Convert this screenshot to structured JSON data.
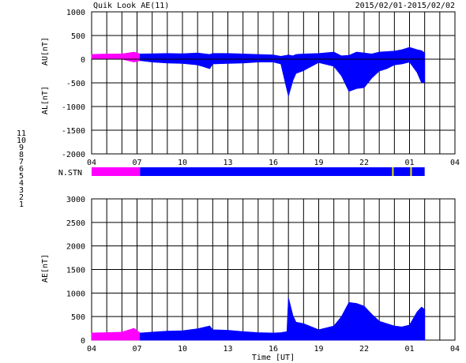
{
  "header": {
    "title": "Quik Look AE(11)",
    "date_range": "2015/02/01-2015/02/02"
  },
  "station_legend": [
    {
      "label": "11",
      "color": "#00e0e0"
    },
    {
      "label": "10",
      "color": "#ff00ff"
    },
    {
      "label": "9",
      "color": "#0000ff"
    },
    {
      "label": "8",
      "color": "#e8e800"
    },
    {
      "label": "7",
      "color": "#00d0a0"
    },
    {
      "label": "6",
      "color": "#e00000"
    },
    {
      "label": "5",
      "color": "#c8c8c8"
    },
    {
      "label": "4",
      "color": "#909090"
    },
    {
      "label": "3",
      "color": "#00c0c0"
    },
    {
      "label": "2",
      "color": "#c000c0"
    },
    {
      "label": "1",
      "color": "#0000c0"
    }
  ],
  "colors": {
    "early_segment": "#ff00ff",
    "main_segment": "#0000ff",
    "gap_marker": "#e8e800"
  },
  "chart_data": [
    {
      "type": "area",
      "ylabel_upper": "AU[nT]",
      "ylabel_lower": "AL[nT]",
      "ylim": [
        -2000,
        1000
      ],
      "yticks": [
        1000,
        500,
        0,
        -500,
        -1000,
        -1500,
        -2000
      ],
      "xlim": [
        4,
        28
      ],
      "xtick_labels": [
        "04",
        "07",
        "10",
        "13",
        "16",
        "19",
        "22",
        "01",
        "04"
      ],
      "grid": true,
      "x": [
        4,
        5,
        6,
        6.8,
        7.2,
        8,
        9,
        10,
        11,
        11.8,
        12,
        13,
        14,
        15,
        16,
        16.5,
        17,
        17.3,
        17.5,
        18,
        19,
        20,
        20.5,
        21,
        21.5,
        22,
        22.5,
        23,
        23.5,
        24,
        24.5,
        25,
        25.5,
        25.8,
        26
      ],
      "series": [
        {
          "values": [
            100,
            110,
            110,
            150,
            110,
            115,
            120,
            115,
            130,
            100,
            120,
            120,
            110,
            100,
            90,
            60,
            90,
            70,
            100,
            110,
            120,
            150,
            70,
            80,
            150,
            130,
            110,
            150,
            160,
            170,
            200,
            250,
            200,
            180,
            130
          ]
        },
        {
          "values": [
            10,
            10,
            0,
            -60,
            -30,
            -60,
            -80,
            -90,
            -120,
            -200,
            -100,
            -90,
            -80,
            -60,
            -60,
            -100,
            -780,
            -450,
            -300,
            -240,
            -70,
            -150,
            -350,
            -680,
            -620,
            -600,
            -400,
            -250,
            -200,
            -120,
            -100,
            -60,
            -280,
            -500,
            -480
          ]
        }
      ]
    },
    {
      "type": "area",
      "ylabel": "AE[nT]",
      "ylim": [
        0,
        3000
      ],
      "yticks": [
        3000,
        2500,
        2000,
        1500,
        1000,
        500,
        0
      ],
      "xlim": [
        4,
        28
      ],
      "xtick_labels": [
        "04",
        "07",
        "10",
        "13",
        "16",
        "19",
        "22",
        "01",
        "04"
      ],
      "xlabel": "Time [UT]",
      "grid": true,
      "x": [
        4,
        5,
        6,
        6.8,
        7.2,
        8,
        9,
        10,
        11,
        11.8,
        12,
        13,
        14,
        15,
        16,
        16.5,
        16.9,
        17,
        17.3,
        17.5,
        18,
        19,
        20,
        20.5,
        21,
        21.5,
        22,
        22.5,
        23,
        23.5,
        24,
        24.5,
        25,
        25.5,
        25.8,
        26
      ],
      "values": [
        150,
        160,
        170,
        250,
        150,
        170,
        190,
        200,
        240,
        300,
        220,
        210,
        180,
        160,
        150,
        160,
        180,
        900,
        520,
        380,
        350,
        220,
        300,
        500,
        800,
        780,
        720,
        550,
        400,
        350,
        300,
        280,
        320,
        600,
        700,
        650
      ]
    }
  ],
  "nstn_bar": {
    "label": "N.STN",
    "segments": [
      {
        "from": 4,
        "to": 7.2,
        "color": "#ff00ff"
      },
      {
        "from": 7.2,
        "to": 26,
        "color": "#0000ff"
      }
    ],
    "markers": [
      23.9,
      25.1
    ]
  }
}
